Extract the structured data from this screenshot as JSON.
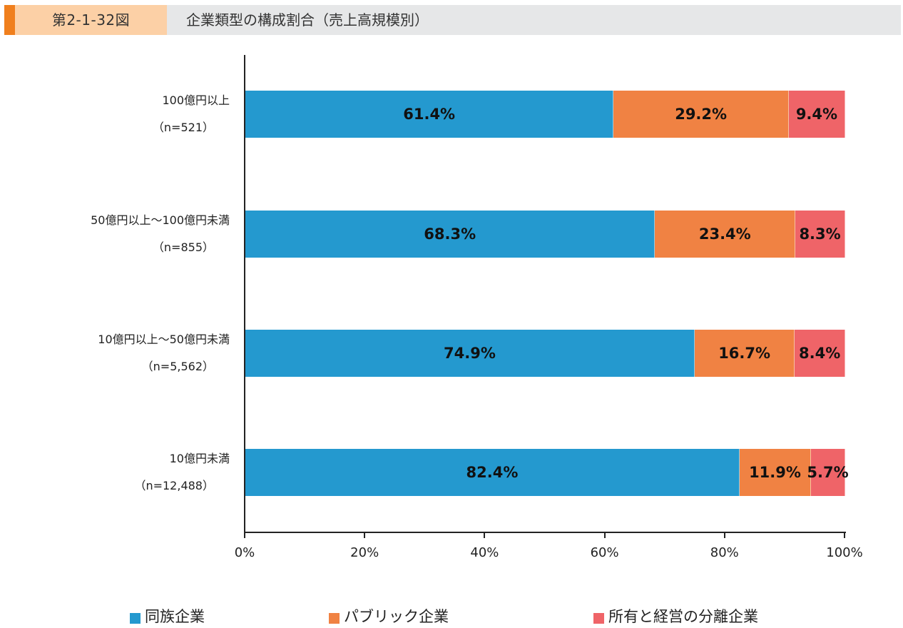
{
  "header": {
    "figure_number": "第2-1-32図",
    "title": "企業類型の構成割合（売上高規模別）",
    "colors": {
      "accent": "#f07f1d",
      "number_bg": "#fcd0a6",
      "title_bg": "#e6e7e8"
    }
  },
  "chart_data": {
    "type": "bar",
    "orientation": "horizontal",
    "stacked": true,
    "title": "企業類型の構成割合（売上高規模別）",
    "xlabel": "",
    "ylabel": "",
    "xlim": [
      0,
      100
    ],
    "x_ticks": [
      "0%",
      "20%",
      "40%",
      "60%",
      "80%",
      "100%"
    ],
    "grid": false,
    "legend_position": "bottom",
    "categories": [
      {
        "label": "100億円以上",
        "n": "（n=521）"
      },
      {
        "label": "50億円以上～100億円未満",
        "n": "（n=855）"
      },
      {
        "label": "10億円以上～50億円未満",
        "n": "（n=5,562）"
      },
      {
        "label": "10億円未満",
        "n": "（n=12,488）"
      }
    ],
    "series": [
      {
        "name": "同族企業",
        "color": "#2499cf",
        "values": [
          61.4,
          68.3,
          74.9,
          82.4
        ],
        "labels": [
          "61.4%",
          "68.3%",
          "74.9%",
          "82.4%"
        ]
      },
      {
        "name": "パブリック企業",
        "color": "#f08243",
        "values": [
          29.2,
          23.4,
          16.7,
          11.9
        ],
        "labels": [
          "29.2%",
          "23.4%",
          "16.7%",
          "11.9%"
        ]
      },
      {
        "name": "所有と経営の分離企業",
        "color": "#ef6468",
        "values": [
          9.4,
          8.3,
          8.4,
          5.7
        ],
        "labels": [
          "9.4%",
          "8.3%",
          "8.4%",
          "5.7%"
        ]
      }
    ]
  }
}
